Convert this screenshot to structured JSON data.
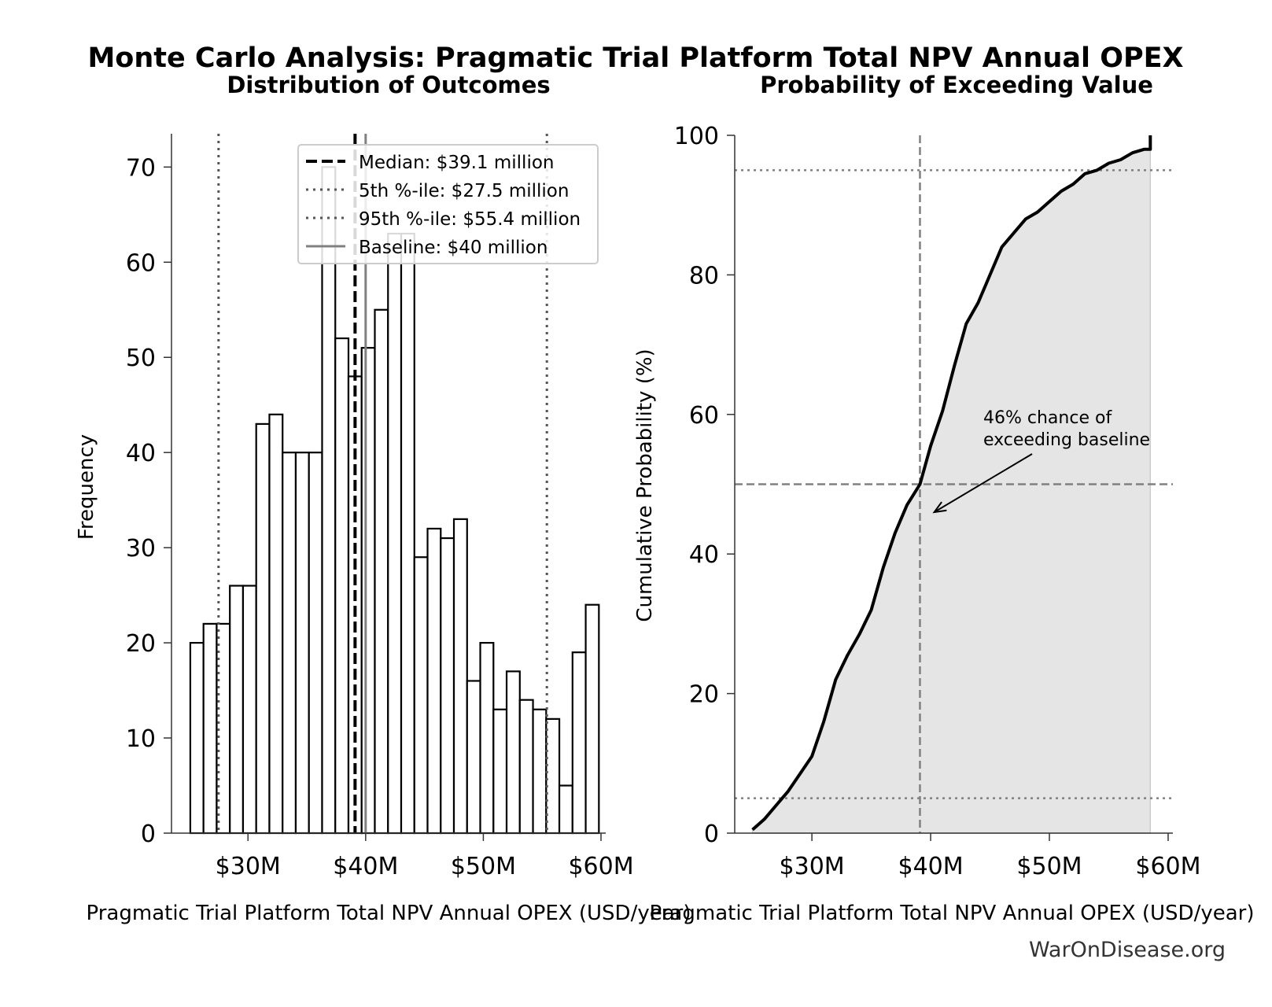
{
  "figure": {
    "suptitle": "Monte Carlo Analysis: Pragmatic Trial Platform Total NPV Annual OPEX",
    "watermark": "WarOnDisease.org",
    "colors": {
      "ink": "#000000",
      "grey": "#808080",
      "dotted": "#555555",
      "fill": "#e5e5e5",
      "axis": "#333333"
    }
  },
  "chart_data": [
    {
      "type": "bar",
      "subtitle": "Distribution of Outcomes",
      "xlabel": "Pragmatic Trial Platform Total NPV Annual OPEX (USD/year)",
      "ylabel": "Frequency",
      "xlim": [
        23.5,
        60.4
      ],
      "ylim": [
        0,
        73.5
      ],
      "x_ticks": [
        30,
        40,
        50,
        60
      ],
      "x_tick_labels": [
        "$30M",
        "$40M",
        "$50M",
        "$60M"
      ],
      "y_ticks": [
        0,
        10,
        20,
        30,
        40,
        50,
        60,
        70
      ],
      "bin_start": 25.1,
      "bin_width": 1.12,
      "values": [
        20,
        22,
        22,
        26,
        26,
        43,
        44,
        40,
        40,
        40,
        70,
        52,
        48,
        51,
        55,
        63,
        63,
        29,
        32,
        31,
        33,
        16,
        20,
        13,
        17,
        14,
        13,
        12,
        5,
        19,
        24
      ],
      "median": 39.1,
      "p5": 27.5,
      "p95": 55.4,
      "baseline": 40,
      "legend": {
        "position": "upper right",
        "entries": [
          "Median: $39.1 million",
          "5th %-ile: $27.5 million",
          "95th %-ile: $55.4 million",
          "Baseline: $40 million"
        ]
      },
      "grid": false
    },
    {
      "type": "area",
      "subtitle": "Probability of Exceeding Value",
      "xlabel": "Pragmatic Trial Platform Total NPV Annual OPEX (USD/year)",
      "ylabel": "Cumulative Probability (%)",
      "xlim": [
        23.5,
        60.4
      ],
      "ylim": [
        0,
        100
      ],
      "x_ticks": [
        30,
        40,
        50,
        60
      ],
      "x_tick_labels": [
        "$30M",
        "$40M",
        "$50M",
        "$60M"
      ],
      "y_ticks": [
        0,
        20,
        40,
        60,
        80,
        100
      ],
      "x": [
        25.0,
        26.0,
        27.0,
        28.0,
        29.0,
        30.0,
        31.0,
        32.0,
        33.0,
        34.0,
        35.0,
        36.0,
        37.0,
        38.0,
        39.1,
        40.0,
        41.0,
        42.0,
        43.0,
        44.0,
        45.0,
        46.0,
        47.0,
        48.0,
        49.0,
        50.0,
        51.0,
        52.0,
        53.0,
        54.0,
        55.0,
        56.0,
        57.0,
        58.0,
        58.5,
        58.5
      ],
      "y": [
        0.5,
        2,
        4,
        6,
        8.5,
        11,
        16,
        22,
        25.5,
        28.5,
        32,
        38,
        43,
        47,
        50,
        55.5,
        60.5,
        67,
        73,
        76,
        80,
        84,
        86,
        88,
        89,
        90.5,
        92,
        93,
        94.5,
        95,
        96,
        96.5,
        97.5,
        98,
        98,
        100
      ],
      "reference_lines": {
        "median_x": 39.1,
        "y_50": 50,
        "y_5": 5,
        "y_95": 95
      },
      "annotation": {
        "text_line1": "46% chance of",
        "text_line2": "exceeding baseline",
        "target_x": 40.3,
        "target_y": 46
      },
      "grid": false
    }
  ]
}
